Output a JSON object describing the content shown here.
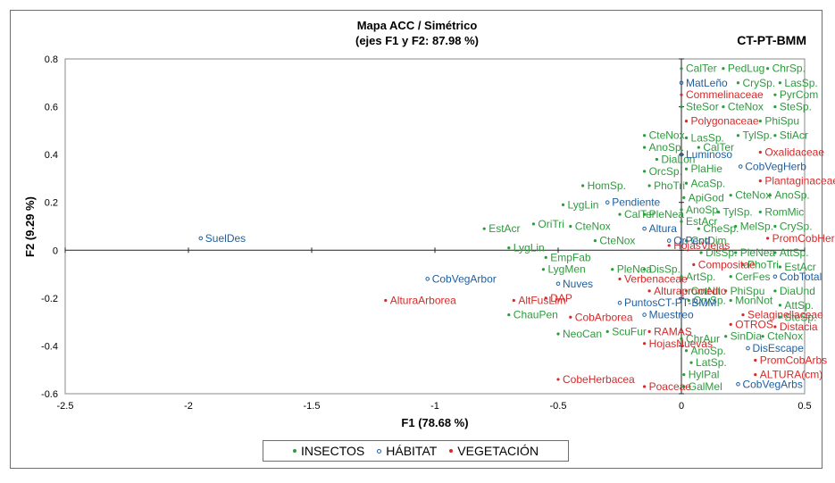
{
  "chart_data": {
    "type": "scatter",
    "title": "Mapa ACC / Simétrico",
    "subtitle": "(ejes F1 y F2: 87.98 %)",
    "id_label": "CT-PT-BMM",
    "xlabel": "F1 (78.68 %)",
    "ylabel": "F2 (9.29 %)",
    "xlim": [
      -2.5,
      0.5
    ],
    "ylim": [
      -0.6,
      0.8
    ],
    "x_ticks": [
      "-2.5",
      "-2",
      "-1.5",
      "-1",
      "-0.5",
      "0",
      "0.5"
    ],
    "y_ticks": [
      "-0.6",
      "-0.4",
      "-0.2",
      "0",
      "0.2",
      "0.4",
      "0.6",
      "0.8"
    ],
    "legend_position": "bottom",
    "series": [
      {
        "name": "INSECTOS",
        "color": "#2e9a3e",
        "marker": "filled",
        "points": [
          {
            "label": "CalTer",
            "x": 0.0,
            "y": 0.76
          },
          {
            "label": "PedLug",
            "x": 0.17,
            "y": 0.76
          },
          {
            "label": "ChrSp.",
            "x": 0.35,
            "y": 0.76
          },
          {
            "label": "CrySp.",
            "x": 0.23,
            "y": 0.7
          },
          {
            "label": "LasSp.",
            "x": 0.4,
            "y": 0.7
          },
          {
            "label": "PyrCom",
            "x": 0.38,
            "y": 0.65
          },
          {
            "label": "SteSor",
            "x": 0.0,
            "y": 0.6
          },
          {
            "label": "CteNox",
            "x": 0.17,
            "y": 0.6
          },
          {
            "label": "SteSp.",
            "x": 0.38,
            "y": 0.6
          },
          {
            "label": "PhiSpu",
            "x": 0.32,
            "y": 0.54
          },
          {
            "label": "TylSp.",
            "x": 0.23,
            "y": 0.48
          },
          {
            "label": "StiAcr",
            "x": 0.38,
            "y": 0.48
          },
          {
            "label": "LasSp.",
            "x": 0.02,
            "y": 0.47
          },
          {
            "label": "CalTer",
            "x": 0.07,
            "y": 0.43
          },
          {
            "label": "CteNox",
            "x": -0.15,
            "y": 0.48
          },
          {
            "label": "AnoSp.",
            "x": -0.15,
            "y": 0.43
          },
          {
            "label": "DiaLon",
            "x": -0.1,
            "y": 0.38
          },
          {
            "label": "OrcSp.",
            "x": -0.15,
            "y": 0.33
          },
          {
            "label": "PlaHie",
            "x": 0.02,
            "y": 0.34
          },
          {
            "label": "HomSp.",
            "x": -0.4,
            "y": 0.27
          },
          {
            "label": "PhoTri",
            "x": -0.13,
            "y": 0.27
          },
          {
            "label": "AcaSp.",
            "x": 0.02,
            "y": 0.28
          },
          {
            "label": "ApiGod",
            "x": 0.01,
            "y": 0.22
          },
          {
            "label": "CteNox",
            "x": 0.2,
            "y": 0.23
          },
          {
            "label": "AnoSp.",
            "x": 0.36,
            "y": 0.23
          },
          {
            "label": "LygLin",
            "x": -0.48,
            "y": 0.19
          },
          {
            "label": "CalTer",
            "x": -0.25,
            "y": 0.15
          },
          {
            "label": "PleNea",
            "x": -0.15,
            "y": 0.15
          },
          {
            "label": "AnoSp.",
            "x": 0.0,
            "y": 0.17
          },
          {
            "label": "TylSp.",
            "x": 0.15,
            "y": 0.16
          },
          {
            "label": "RomMic",
            "x": 0.32,
            "y": 0.16
          },
          {
            "label": "EstAcr",
            "x": 0.0,
            "y": 0.12
          },
          {
            "label": "CheSp.",
            "x": 0.07,
            "y": 0.09
          },
          {
            "label": "MelSp.",
            "x": 0.22,
            "y": 0.1
          },
          {
            "label": "CrySp.",
            "x": 0.38,
            "y": 0.1
          },
          {
            "label": "EstAcr",
            "x": -0.8,
            "y": 0.09
          },
          {
            "label": "OriTri",
            "x": -0.6,
            "y": 0.11
          },
          {
            "label": "CteNox",
            "x": -0.45,
            "y": 0.1
          },
          {
            "label": "CteNox",
            "x": -0.35,
            "y": 0.04
          },
          {
            "label": "CotDim",
            "x": 0.02,
            "y": 0.04
          },
          {
            "label": "LygLin",
            "x": -0.7,
            "y": 0.01
          },
          {
            "label": "AttSp.",
            "x": 0.38,
            "y": -0.01
          },
          {
            "label": "PleNea",
            "x": 0.22,
            "y": -0.01
          },
          {
            "label": "DisSp.",
            "x": 0.08,
            "y": -0.01
          },
          {
            "label": "EmpFab",
            "x": -0.55,
            "y": -0.03
          },
          {
            "label": "PleNea",
            "x": -0.28,
            "y": -0.08
          },
          {
            "label": "DisSp.",
            "x": -0.15,
            "y": -0.08
          },
          {
            "label": "PhoTri",
            "x": 0.25,
            "y": -0.06
          },
          {
            "label": "EstAcr",
            "x": 0.4,
            "y": -0.07
          },
          {
            "label": "LygMen",
            "x": -0.56,
            "y": -0.08
          },
          {
            "label": "ArtSp.",
            "x": 0.0,
            "y": -0.11
          },
          {
            "label": "CerFes",
            "x": 0.2,
            "y": -0.11
          },
          {
            "label": "CotNit",
            "x": 0.02,
            "y": -0.17
          },
          {
            "label": "PhiSpu",
            "x": 0.18,
            "y": -0.17
          },
          {
            "label": "DiaUnd",
            "x": 0.38,
            "y": -0.17
          },
          {
            "label": "CrySp.",
            "x": 0.03,
            "y": -0.21
          },
          {
            "label": "MonNot",
            "x": 0.2,
            "y": -0.21
          },
          {
            "label": "AttSp.",
            "x": 0.4,
            "y": -0.23
          },
          {
            "label": "ChauPen",
            "x": -0.7,
            "y": -0.27
          },
          {
            "label": "SteSp.",
            "x": 0.4,
            "y": -0.28
          },
          {
            "label": "NeoCan",
            "x": -0.5,
            "y": -0.35
          },
          {
            "label": "ScuFur",
            "x": -0.3,
            "y": -0.34
          },
          {
            "label": "ChrAur",
            "x": 0.0,
            "y": -0.37
          },
          {
            "label": "SinDia",
            "x": 0.18,
            "y": -0.36
          },
          {
            "label": "CteNox",
            "x": 0.33,
            "y": -0.36
          },
          {
            "label": "AnoSp.",
            "x": 0.02,
            "y": -0.42
          },
          {
            "label": "LatSp.",
            "x": 0.04,
            "y": -0.47
          },
          {
            "label": "HylPal",
            "x": 0.01,
            "y": -0.52
          },
          {
            "label": "GalMel",
            "x": 0.01,
            "y": -0.57
          }
        ]
      },
      {
        "name": "HÁBITAT",
        "color": "#1f5fa0",
        "marker": "open",
        "points": [
          {
            "label": "MatLeño",
            "x": 0.0,
            "y": 0.7
          },
          {
            "label": "Luminoso",
            "x": 0.0,
            "y": 0.4
          },
          {
            "label": "CobVegHerb",
            "x": 0.24,
            "y": 0.35
          },
          {
            "label": "Pendiente",
            "x": -0.3,
            "y": 0.2
          },
          {
            "label": "Altura",
            "x": -0.15,
            "y": 0.09
          },
          {
            "label": "OrPend",
            "x": -0.05,
            "y": 0.04
          },
          {
            "label": "SuelDes",
            "x": -1.95,
            "y": 0.05
          },
          {
            "label": "CobVegArbor",
            "x": -1.03,
            "y": -0.12
          },
          {
            "label": "Nuves",
            "x": -0.5,
            "y": -0.14
          },
          {
            "label": "CobTotal",
            "x": 0.38,
            "y": -0.11
          },
          {
            "label": "PuntosCT-PT-BMM",
            "x": -0.25,
            "y": -0.22
          },
          {
            "label": "Muestreo",
            "x": -0.15,
            "y": -0.27
          },
          {
            "label": "DisEscape",
            "x": 0.27,
            "y": -0.41
          },
          {
            "label": "CobVegArbs",
            "x": 0.23,
            "y": -0.56
          }
        ]
      },
      {
        "name": "VEGETACIÓN",
        "color": "#d42a2a",
        "marker": "filled",
        "points": [
          {
            "label": "Commelinaceae",
            "x": 0.0,
            "y": 0.65
          },
          {
            "label": "Polygonaceae",
            "x": 0.02,
            "y": 0.54
          },
          {
            "label": "Oxalidaceae",
            "x": 0.32,
            "y": 0.41
          },
          {
            "label": "Plantaginaceae",
            "x": 0.32,
            "y": 0.29
          },
          {
            "label": "PromCobHer",
            "x": 0.35,
            "y": 0.05
          },
          {
            "label": "HojasViejas",
            "x": -0.05,
            "y": 0.02
          },
          {
            "label": "Compositae",
            "x": 0.05,
            "y": -0.06
          },
          {
            "label": "Verbenaceae",
            "x": -0.25,
            "y": -0.12
          },
          {
            "label": "Alturapromedio",
            "x": -0.13,
            "y": -0.17
          },
          {
            "label": "AlturaArborea",
            "x": -1.2,
            "y": -0.21
          },
          {
            "label": "AltFusLim",
            "x": -0.68,
            "y": -0.21
          },
          {
            "label": "DAP",
            "x": -0.55,
            "y": -0.2
          },
          {
            "label": "CobArborea",
            "x": -0.45,
            "y": -0.28
          },
          {
            "label": "Selaginellaceae",
            "x": 0.25,
            "y": -0.27
          },
          {
            "label": "OTROS",
            "x": 0.2,
            "y": -0.31
          },
          {
            "label": "Distacia",
            "x": 0.38,
            "y": -0.32
          },
          {
            "label": "RAMAS",
            "x": -0.13,
            "y": -0.34
          },
          {
            "label": "HojasNuevas",
            "x": -0.15,
            "y": -0.39
          },
          {
            "label": "PromCobArbs",
            "x": 0.3,
            "y": -0.46
          },
          {
            "label": "ALTURA(cm)",
            "x": 0.3,
            "y": -0.52
          },
          {
            "label": "CobeHerbacea",
            "x": -0.5,
            "y": -0.54
          },
          {
            "label": "Poaceae",
            "x": -0.15,
            "y": -0.57
          }
        ]
      }
    ]
  }
}
